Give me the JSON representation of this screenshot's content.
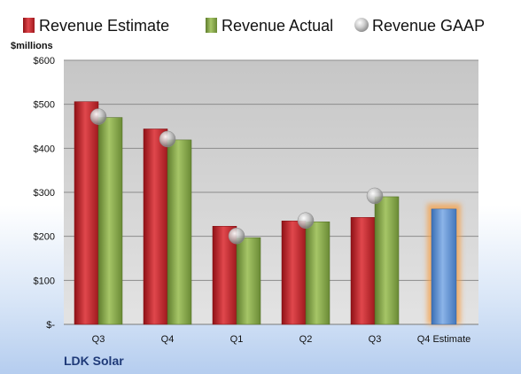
{
  "chart_data": {
    "type": "bar",
    "company": "LDK Solar",
    "unit_label": "$millions",
    "categories": [
      "Q3",
      "Q4",
      "Q1",
      "Q2",
      "Q3",
      "Q4 Estimate"
    ],
    "series": [
      {
        "name": "Revenue Estimate",
        "color": "#c0272d",
        "kind": "bar",
        "values": [
          506,
          444,
          223,
          235,
          243,
          null
        ]
      },
      {
        "name": "Revenue Actual",
        "color": "#86a84a",
        "kind": "bar",
        "values": [
          470,
          419,
          197,
          233,
          290,
          null
        ]
      },
      {
        "name": "Revenue GAAP",
        "color": "#b8b8b8",
        "kind": "marker",
        "values": [
          472,
          421,
          201,
          236,
          292,
          null
        ]
      }
    ],
    "estimate_bar": {
      "category": "Q4 Estimate",
      "value": 262,
      "color": "#5b8fd0",
      "highlight_color": "#f5a04a"
    },
    "y_ticks": [
      {
        "value": 0,
        "label": "$-"
      },
      {
        "value": 100,
        "label": "$100"
      },
      {
        "value": 200,
        "label": "$200"
      },
      {
        "value": 300,
        "label": "$300"
      },
      {
        "value": 400,
        "label": "$400"
      },
      {
        "value": 500,
        "label": "$500"
      },
      {
        "value": 600,
        "label": "$600"
      }
    ],
    "ylim": [
      0,
      600
    ],
    "grid": true,
    "legend_position": "top"
  }
}
